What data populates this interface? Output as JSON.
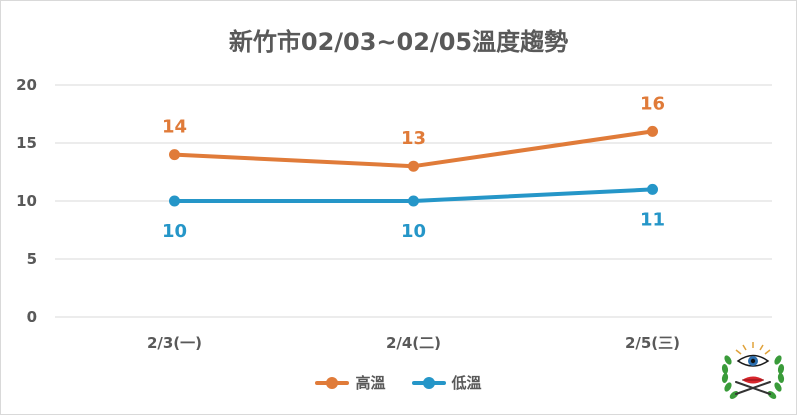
{
  "colors": {
    "high": "#e07b39",
    "low": "#2596c8",
    "grid": "#d9d9d9",
    "text": "#595959"
  },
  "chart_data": {
    "type": "line",
    "title": "新竹市02/03~02/05溫度趨勢",
    "categories": [
      "2/3(一)",
      "2/4(二)",
      "2/5(三)"
    ],
    "series": [
      {
        "name": "高溫",
        "values": [
          14,
          13,
          16
        ]
      },
      {
        "name": "低溫",
        "values": [
          10,
          10,
          11
        ]
      }
    ],
    "ylim": [
      0,
      20
    ],
    "yticks": [
      "0",
      "5",
      "10",
      "15",
      "20"
    ],
    "grid": true,
    "legend": "bottom"
  },
  "logo": {
    "icon": "eye-lips-emblem-icon"
  }
}
